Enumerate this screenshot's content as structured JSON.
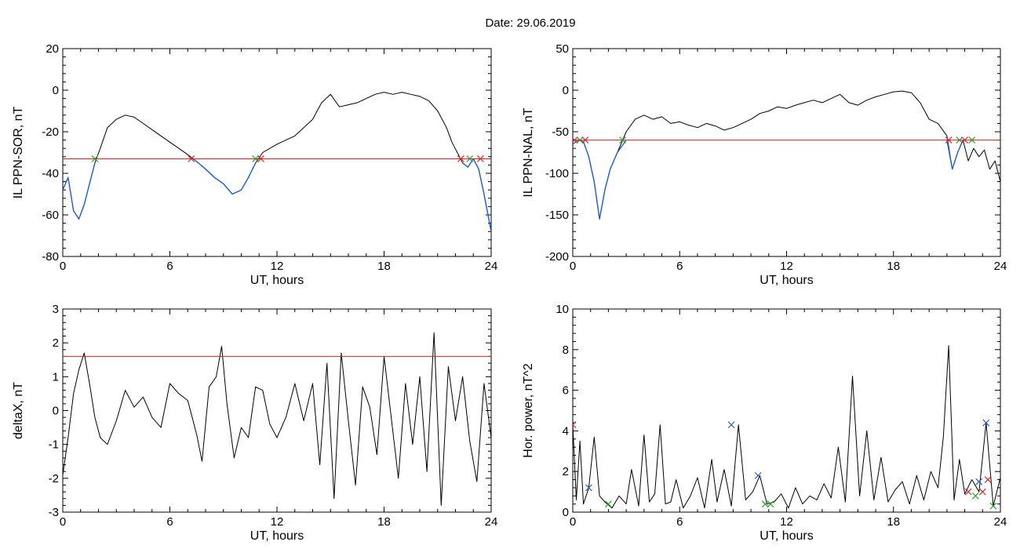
{
  "figure_title": "Date:  29.06.2019",
  "chart_data": [
    {
      "type": "line",
      "ylabel": "IL PPN-SOR, nT",
      "xlabel": "UT, hours",
      "xlim": [
        0,
        24
      ],
      "ylim": [
        -80,
        20
      ],
      "xticks": [
        0,
        6,
        12,
        18,
        24
      ],
      "yticks": [
        20,
        0,
        -20,
        -40,
        -60,
        -80
      ],
      "threshold": -33,
      "series": [
        {
          "color": "#000000",
          "x": [
            0,
            0.3,
            0.6,
            0.9,
            1.2,
            1.5,
            1.8,
            2.1,
            2.5,
            3.0,
            3.5,
            4.0,
            4.5,
            5.0,
            5.5,
            6.0,
            6.5,
            7.0,
            7.3,
            7.6,
            8.0,
            8.5,
            9.0,
            9.5,
            10.0,
            10.4,
            10.8,
            11.2,
            11.6,
            12.0,
            12.5,
            13.0,
            13.5,
            14.0,
            14.5,
            15.0,
            15.5,
            16.0,
            16.5,
            17.0,
            17.5,
            18.0,
            18.5,
            19.0,
            19.5,
            20.0,
            20.5,
            21.0,
            21.5,
            21.8,
            22.1,
            22.4,
            22.7,
            23.0,
            23.3,
            23.6,
            24.0
          ],
          "y": [
            -48,
            -42,
            -58,
            -62,
            -55,
            -45,
            -35,
            -28,
            -18,
            -14,
            -12,
            -13,
            -16,
            -19,
            -22,
            -25,
            -28,
            -31,
            -33,
            -35,
            -38,
            -42,
            -45,
            -50,
            -48,
            -42,
            -35,
            -30,
            -28,
            -26,
            -24,
            -22,
            -18,
            -14,
            -6,
            -2,
            -8,
            -7,
            -6,
            -4,
            -2,
            -1,
            -2,
            -1,
            -2,
            -3,
            -5,
            -10,
            -18,
            -25,
            -30,
            -35,
            -37,
            -33,
            -38,
            -50,
            -68
          ]
        },
        {
          "color": "#1f5fd4",
          "x": [
            0,
            0.3,
            0.6,
            0.9,
            1.2,
            1.5,
            1.8
          ],
          "y": [
            -48,
            -42,
            -58,
            -62,
            -55,
            -45,
            -35
          ]
        },
        {
          "color": "#1f5fd4",
          "x": [
            7.3,
            7.6,
            8.0,
            8.5,
            9.0,
            9.5,
            10.0,
            10.4,
            10.8
          ],
          "y": [
            -33,
            -35,
            -38,
            -42,
            -45,
            -50,
            -48,
            -42,
            -35
          ]
        },
        {
          "color": "#1f5fd4",
          "x": [
            22.4,
            22.7,
            23.0,
            23.3,
            23.6,
            24.0
          ],
          "y": [
            -35,
            -37,
            -33,
            -38,
            -50,
            -68
          ]
        }
      ],
      "markers": [
        {
          "x": 1.8,
          "y": -33,
          "color": "#2ca02c"
        },
        {
          "x": 7.2,
          "y": -33,
          "color": "#d62728"
        },
        {
          "x": 10.8,
          "y": -33,
          "color": "#2ca02c"
        },
        {
          "x": 11.1,
          "y": -33,
          "color": "#d62728"
        },
        {
          "x": 22.3,
          "y": -33,
          "color": "#d62728"
        },
        {
          "x": 22.8,
          "y": -33,
          "color": "#2ca02c"
        },
        {
          "x": 23.4,
          "y": -33,
          "color": "#d62728"
        }
      ]
    },
    {
      "type": "line",
      "ylabel": "IL PPN-NAL, nT",
      "xlabel": "UT, hours",
      "xlim": [
        0,
        24
      ],
      "ylim": [
        -200,
        50
      ],
      "xticks": [
        0,
        6,
        12,
        18,
        24
      ],
      "yticks": [
        50,
        0,
        -50,
        -100,
        -150,
        -200
      ],
      "threshold": -60,
      "series": [
        {
          "color": "#000000",
          "x": [
            0,
            0.3,
            0.6,
            0.9,
            1.2,
            1.5,
            1.8,
            2.1,
            2.5,
            3.0,
            3.5,
            4.0,
            4.5,
            5.0,
            5.5,
            6.0,
            6.5,
            7.0,
            7.5,
            8.0,
            8.5,
            9.0,
            9.5,
            10.0,
            10.5,
            11.0,
            11.5,
            12.0,
            12.5,
            13.0,
            13.5,
            14.0,
            14.5,
            15.0,
            15.5,
            16.0,
            16.5,
            17.0,
            17.5,
            18.0,
            18.5,
            19.0,
            19.5,
            20.0,
            20.5,
            21.0,
            21.3,
            21.6,
            21.9,
            22.2,
            22.5,
            22.8,
            23.1,
            23.4,
            23.7,
            24.0
          ],
          "y": [
            -65,
            -60,
            -62,
            -80,
            -110,
            -155,
            -120,
            -95,
            -75,
            -50,
            -35,
            -30,
            -35,
            -32,
            -40,
            -38,
            -42,
            -45,
            -40,
            -43,
            -48,
            -45,
            -40,
            -35,
            -28,
            -25,
            -20,
            -22,
            -18,
            -15,
            -12,
            -15,
            -10,
            -5,
            -15,
            -18,
            -12,
            -8,
            -5,
            -2,
            -1,
            -3,
            -15,
            -35,
            -40,
            -55,
            -95,
            -75,
            -60,
            -85,
            -70,
            -80,
            -72,
            -95,
            -85,
            -110
          ]
        },
        {
          "color": "#1f5fd4",
          "x": [
            0,
            0.3,
            0.6,
            0.9,
            1.2,
            1.5,
            1.8,
            2.1,
            2.5,
            3.0
          ],
          "y": [
            -65,
            -60,
            -62,
            -80,
            -110,
            -155,
            -120,
            -95,
            -75,
            -60
          ]
        },
        {
          "color": "#1f5fd4",
          "x": [
            21.0,
            21.3,
            21.6,
            21.9
          ],
          "y": [
            -60,
            -95,
            -75,
            -60
          ]
        }
      ],
      "markers": [
        {
          "x": 0.1,
          "y": -60,
          "color": "#d62728"
        },
        {
          "x": 0.4,
          "y": -60,
          "color": "#2ca02c"
        },
        {
          "x": 0.7,
          "y": -60,
          "color": "#d62728"
        },
        {
          "x": 2.8,
          "y": -60,
          "color": "#2ca02c"
        },
        {
          "x": 21.1,
          "y": -60,
          "color": "#d62728"
        },
        {
          "x": 21.7,
          "y": -60,
          "color": "#2ca02c"
        },
        {
          "x": 22.0,
          "y": -60,
          "color": "#d62728"
        },
        {
          "x": 22.4,
          "y": -60,
          "color": "#2ca02c"
        }
      ]
    },
    {
      "type": "line",
      "ylabel": "deltaX, nT",
      "xlabel": "UT, hours",
      "xlim": [
        0,
        24
      ],
      "ylim": [
        -3,
        3
      ],
      "xticks": [
        0,
        6,
        12,
        18,
        24
      ],
      "yticks": [
        3,
        2,
        1,
        0,
        -1,
        -2,
        -3
      ],
      "threshold": 1.6,
      "series": [
        {
          "color": "#000000",
          "x": [
            0,
            0.3,
            0.6,
            0.9,
            1.2,
            1.5,
            1.8,
            2.1,
            2.5,
            3.0,
            3.5,
            4.0,
            4.5,
            5.0,
            5.5,
            6.0,
            6.5,
            7.0,
            7.5,
            7.8,
            8.2,
            8.6,
            8.9,
            9.2,
            9.6,
            10.0,
            10.4,
            10.8,
            11.2,
            11.6,
            12.0,
            12.5,
            13.0,
            13.5,
            14.0,
            14.4,
            14.8,
            15.2,
            15.6,
            16.0,
            16.4,
            16.8,
            17.2,
            17.6,
            18.0,
            18.4,
            18.8,
            19.2,
            19.6,
            20.0,
            20.4,
            20.8,
            21.2,
            21.6,
            22.0,
            22.4,
            22.8,
            23.2,
            23.6,
            24.0
          ],
          "y": [
            -1.9,
            -0.8,
            0.5,
            1.2,
            1.7,
            0.8,
            -0.2,
            -0.8,
            -1.0,
            -0.3,
            0.6,
            0.1,
            0.4,
            -0.2,
            -0.5,
            0.8,
            0.5,
            0.3,
            -0.7,
            -1.5,
            0.7,
            1.0,
            1.9,
            0.2,
            -1.4,
            -0.5,
            -0.8,
            0.7,
            0.6,
            -0.4,
            -0.8,
            -0.2,
            0.8,
            -0.3,
            0.8,
            -1.6,
            1.4,
            -2.6,
            1.7,
            -0.3,
            -2.2,
            0.7,
            0.1,
            -1.3,
            1.6,
            -0.2,
            -2.0,
            0.8,
            -1.0,
            1.0,
            -1.8,
            2.3,
            -2.8,
            1.3,
            -0.3,
            1.0,
            -0.9,
            -2.1,
            0.8,
            -0.8
          ]
        }
      ],
      "markers": []
    },
    {
      "type": "line",
      "ylabel": "Hor. power, nT^2",
      "xlabel": "UT, hours",
      "xlim": [
        0,
        24
      ],
      "ylim": [
        0,
        10
      ],
      "xticks": [
        0,
        6,
        12,
        18,
        24
      ],
      "yticks": [
        10,
        8,
        6,
        4,
        2,
        0
      ],
      "series": [
        {
          "color": "#000000",
          "x": [
            0,
            0.2,
            0.4,
            0.6,
            0.9,
            1.2,
            1.5,
            1.8,
            2.2,
            2.6,
            3.0,
            3.3,
            3.7,
            4.0,
            4.3,
            4.6,
            4.9,
            5.2,
            5.5,
            5.8,
            6.2,
            6.6,
            7.0,
            7.4,
            7.8,
            8.1,
            8.5,
            8.9,
            9.3,
            9.7,
            10.1,
            10.5,
            10.9,
            11.3,
            11.7,
            12.1,
            12.5,
            12.9,
            13.3,
            13.7,
            14.1,
            14.5,
            14.9,
            15.3,
            15.7,
            16.1,
            16.5,
            16.9,
            17.3,
            17.7,
            18.1,
            18.5,
            18.9,
            19.3,
            19.7,
            20.1,
            20.5,
            20.8,
            21.1,
            21.4,
            21.7,
            22.0,
            22.4,
            22.8,
            23.2,
            23.6,
            24.0
          ],
          "y": [
            4.3,
            0.6,
            3.5,
            0.4,
            1.2,
            3.7,
            0.8,
            0.5,
            0.2,
            0.8,
            0.4,
            2.1,
            0.3,
            3.8,
            0.5,
            0.9,
            4.3,
            0.4,
            0.5,
            1.6,
            0.2,
            0.8,
            1.7,
            0.2,
            2.6,
            0.5,
            2.1,
            0.3,
            4.3,
            0.6,
            1.0,
            1.8,
            0.4,
            0.5,
            0.9,
            0.2,
            1.2,
            0.4,
            0.8,
            0.6,
            1.4,
            0.7,
            3.2,
            0.5,
            6.7,
            0.8,
            4.0,
            0.6,
            2.7,
            0.5,
            1.1,
            1.5,
            0.4,
            1.8,
            0.6,
            2.0,
            1.2,
            3.7,
            8.2,
            0.6,
            2.6,
            0.9,
            1.6,
            1.0,
            4.4,
            0.3,
            1.7
          ]
        }
      ],
      "markers": [
        {
          "x": 0.0,
          "y": 4.3,
          "color": "#d62728"
        },
        {
          "x": 0.9,
          "y": 1.2,
          "color": "#1f5fd4"
        },
        {
          "x": 2.0,
          "y": 0.4,
          "color": "#2ca02c"
        },
        {
          "x": 8.9,
          "y": 4.3,
          "color": "#1f5fd4"
        },
        {
          "x": 10.4,
          "y": 1.8,
          "color": "#1f5fd4"
        },
        {
          "x": 10.8,
          "y": 0.4,
          "color": "#2ca02c"
        },
        {
          "x": 11.1,
          "y": 0.4,
          "color": "#2ca02c"
        },
        {
          "x": 22.2,
          "y": 1.0,
          "color": "#d62728"
        },
        {
          "x": 22.6,
          "y": 0.8,
          "color": "#2ca02c"
        },
        {
          "x": 22.8,
          "y": 1.5,
          "color": "#1f5fd4"
        },
        {
          "x": 23.0,
          "y": 1.0,
          "color": "#d62728"
        },
        {
          "x": 23.2,
          "y": 4.4,
          "color": "#1f5fd4"
        },
        {
          "x": 23.3,
          "y": 1.6,
          "color": "#d62728"
        },
        {
          "x": 23.6,
          "y": 0.3,
          "color": "#2ca02c"
        }
      ]
    }
  ],
  "colors": {
    "threshold": "#e0201e",
    "axis": "#000000"
  }
}
